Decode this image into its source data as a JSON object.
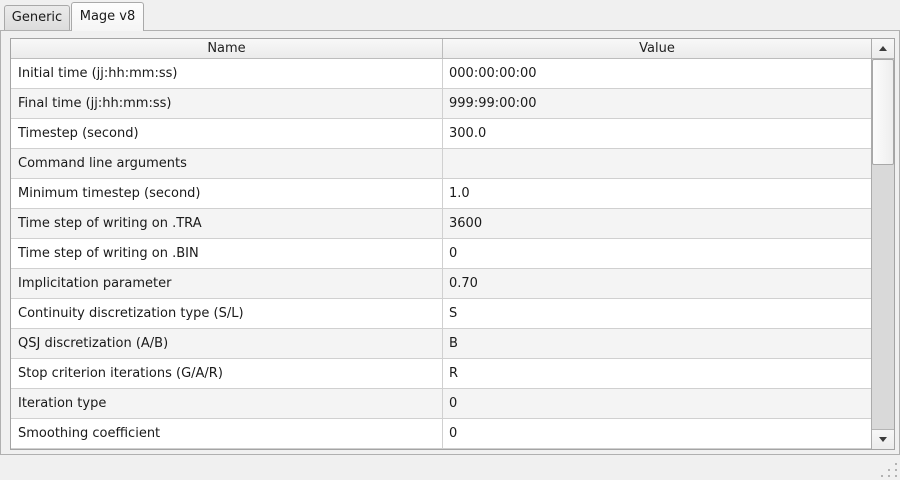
{
  "tabs": [
    {
      "label": "Generic",
      "active": false
    },
    {
      "label": "Mage v8",
      "active": true
    }
  ],
  "table": {
    "columns": {
      "name": "Name",
      "value": "Value"
    },
    "rows": [
      {
        "name": "Initial time (jj:hh:mm:ss)",
        "value": "000:00:00:00"
      },
      {
        "name": "Final time (jj:hh:mm:ss)",
        "value": "999:99:00:00"
      },
      {
        "name": "Timestep (second)",
        "value": "300.0"
      },
      {
        "name": "Command line arguments",
        "value": ""
      },
      {
        "name": "Minimum timestep (second)",
        "value": "1.0"
      },
      {
        "name": "Time step of writing on .TRA",
        "value": "3600"
      },
      {
        "name": "Time step of writing on .BIN",
        "value": "0"
      },
      {
        "name": "Implicitation parameter",
        "value": "0.70"
      },
      {
        "name": "Continuity discretization type (S/L)",
        "value": "S"
      },
      {
        "name": "QSJ discretization (A/B)",
        "value": "B"
      },
      {
        "name": "Stop criterion iterations (G/A/R)",
        "value": "R"
      },
      {
        "name": "Iteration type",
        "value": "0"
      },
      {
        "name": "Smoothing coefficient",
        "value": "0"
      }
    ]
  },
  "scrollbar": {
    "up_icon": "triangle-up",
    "down_icon": "triangle-down"
  },
  "colors": {
    "window_bg": "#f0f0f0",
    "tab_active_bg": "#fafafa",
    "tab_inactive_bg": "#e2e2e2",
    "header_bg": "#f1f1f1",
    "row_alt_bg": "#f4f4f4",
    "border": "#a9a9a9",
    "scroll_track": "#d9d9d9",
    "text": "#1a1a1a"
  }
}
